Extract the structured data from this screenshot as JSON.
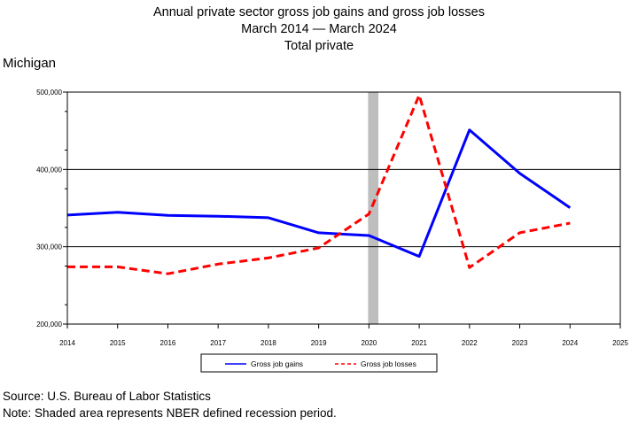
{
  "chart_data": {
    "type": "line",
    "title": "Annual private sector gross job gains and gross job losses",
    "subtitle": "March 2014 — March 2024",
    "subtitle2": "Total private",
    "region": "Michigan",
    "x": [
      2014,
      2015,
      2016,
      2017,
      2018,
      2019,
      2020,
      2021,
      2022,
      2023,
      2024
    ],
    "x_ticks": [
      2014,
      2015,
      2016,
      2017,
      2018,
      2019,
      2020,
      2021,
      2022,
      2023,
      2024,
      2025
    ],
    "xlim": [
      2014,
      2025
    ],
    "ylim": [
      200000,
      500000
    ],
    "y_ticks": [
      200000,
      300000,
      400000,
      500000
    ],
    "y_tick_labels": [
      "200,000",
      "300,000",
      "400,000",
      "500,000"
    ],
    "recession": [
      2020,
      2020.17
    ],
    "grid": "horizontal",
    "legend_position": "bottom-center",
    "series": [
      {
        "name": "Gross job gains",
        "color": "#0000ff",
        "dash": "solid",
        "values": [
          341000,
          344500,
          340500,
          339500,
          337500,
          318000,
          314500,
          287500,
          451000,
          395000,
          350500
        ]
      },
      {
        "name": "Gross job losses",
        "color": "#ff0000",
        "dash": "dashed",
        "values": [
          274000,
          274000,
          265000,
          277500,
          285500,
          298500,
          342500,
          496000,
          273000,
          318000,
          330500
        ]
      }
    ]
  },
  "footer": {
    "source": "Source: U.S. Bureau of Labor Statistics",
    "note": "Note: Shaded area represents NBER defined recession period."
  }
}
